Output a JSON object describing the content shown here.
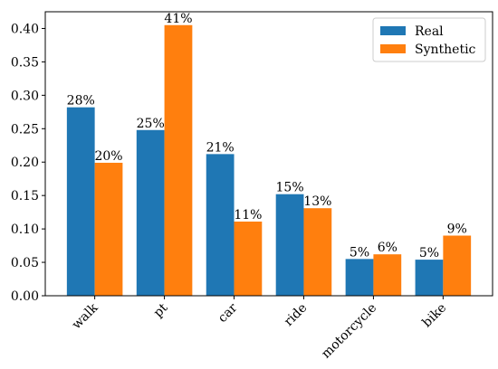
{
  "chart_data": {
    "type": "bar",
    "categories": [
      "walk",
      "pt",
      "car",
      "ride",
      "motorcycle",
      "bike"
    ],
    "series": [
      {
        "name": "Real",
        "color": "#1f77b4",
        "values": [
          0.282,
          0.248,
          0.212,
          0.152,
          0.055,
          0.054
        ],
        "labels": [
          "28%",
          "25%",
          "21%",
          "15%",
          "5%",
          "5%"
        ]
      },
      {
        "name": "Synthetic",
        "color": "#ff7f0e",
        "values": [
          0.199,
          0.405,
          0.111,
          0.131,
          0.062,
          0.09
        ],
        "labels": [
          "20%",
          "41%",
          "11%",
          "13%",
          "6%",
          "9%"
        ]
      }
    ],
    "ylim": [
      0,
      0.425
    ],
    "yticks": [
      "0.00",
      "0.05",
      "0.10",
      "0.15",
      "0.20",
      "0.25",
      "0.30",
      "0.35",
      "0.40"
    ],
    "title": "",
    "xlabel": "",
    "ylabel": "",
    "legend_position": "top-right",
    "grid": false
  }
}
